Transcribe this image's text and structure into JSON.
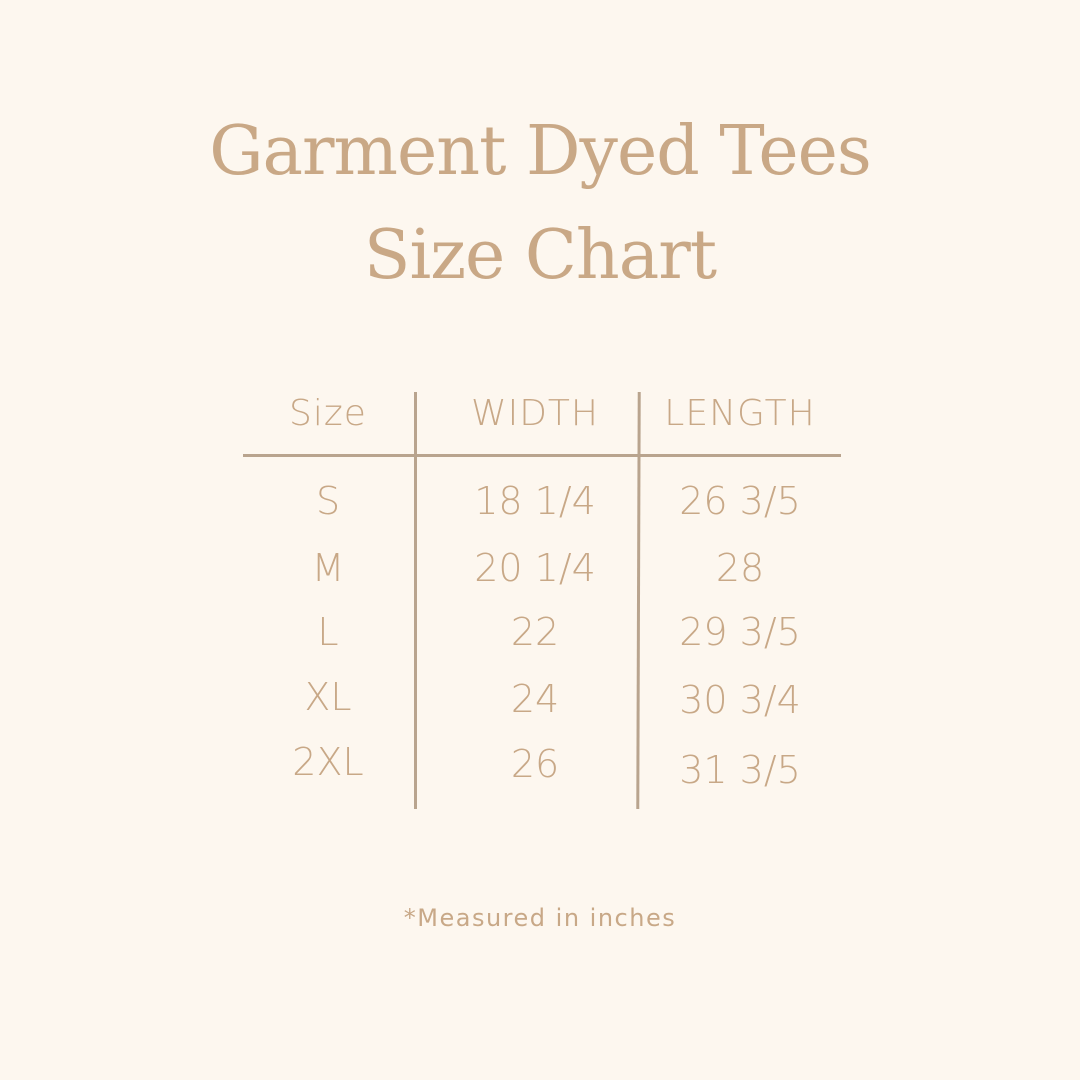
{
  "title": {
    "line1": "Garment Dyed Tees",
    "line2": "Size Chart"
  },
  "table": {
    "headers": [
      "Size",
      "WIDTH",
      "LENGTH"
    ],
    "rows": [
      [
        "S",
        "18 1/4",
        "26 3/5"
      ],
      [
        "M",
        "20 1/4",
        "28"
      ],
      [
        "L",
        "22",
        "29 3/5"
      ],
      [
        "XL",
        "24",
        "30 3/4"
      ],
      [
        "2XL",
        "26",
        "31 3/5"
      ]
    ]
  },
  "footnote": "*Measured in inches",
  "colors": {
    "background": "#fdf7ef",
    "text": "#c8a887",
    "lines": "#b9a48e"
  }
}
